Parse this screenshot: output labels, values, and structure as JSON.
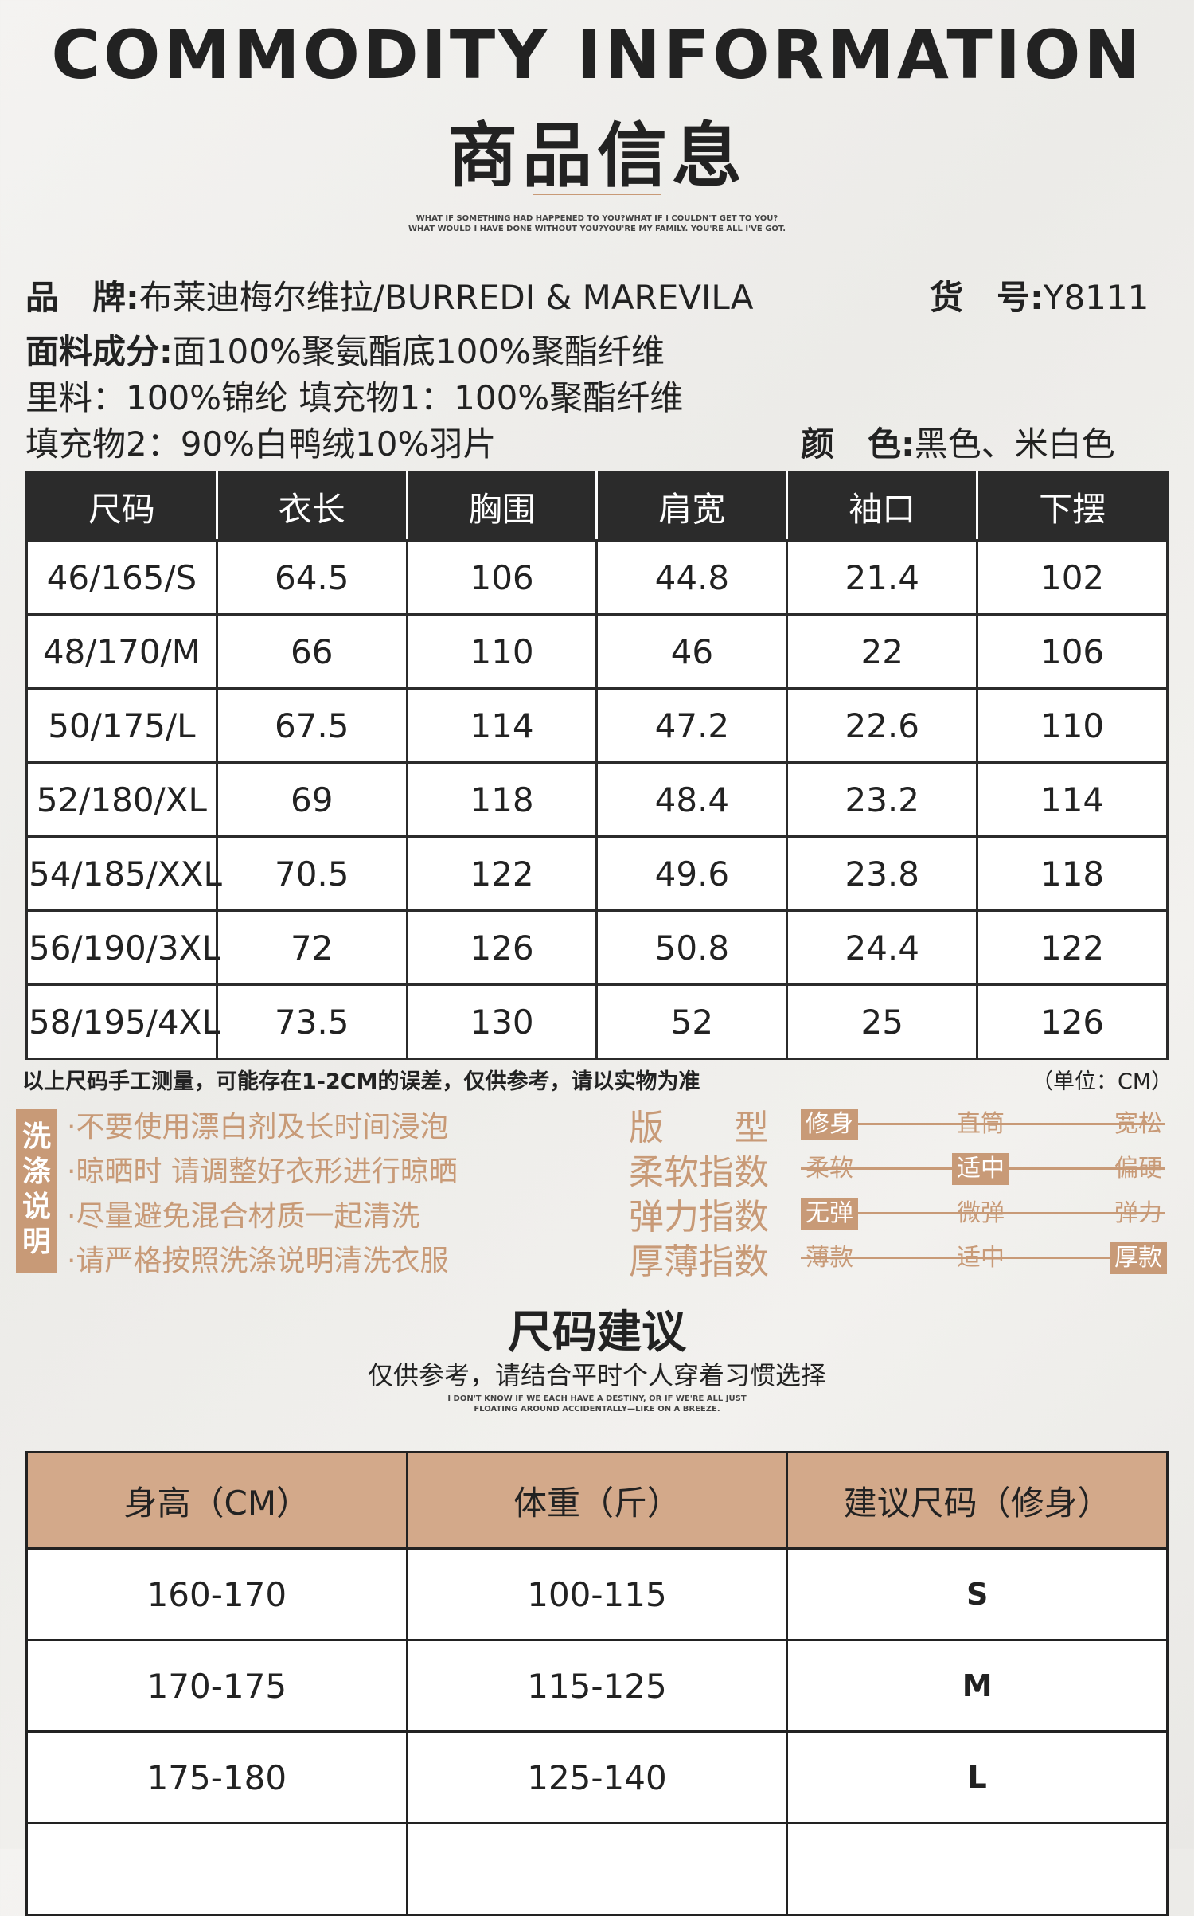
{
  "header": {
    "title_en": "COMMODITY INFORMATION",
    "title_cn": "商品信息",
    "tagline1": "WHAT IF SOMETHING HAD HAPPENED TO YOU?WHAT IF I COULDN'T GET TO YOU?",
    "tagline2": "WHAT WOULD I HAVE DONE WITHOUT YOU?YOU'RE MY FAMILY. YOU'RE ALL I'VE GOT."
  },
  "info": {
    "brand_label": "品　牌:",
    "brand_value": "布莱迪梅尔维拉/BURREDI & MAREVILA",
    "item_no_label": "货　号:",
    "item_no_value": "Y8111",
    "fabric_label": "面料成分:",
    "fabric_value": "面100%聚氨酯底100%聚酯纤维",
    "lining": "里料：100%锦纶 填充物1：100%聚酯纤维",
    "filling2": "填充物2：90%白鸭绒10%羽片",
    "color_label": "颜　色:",
    "color_value": "黑色、米白色"
  },
  "size_table": {
    "headers": [
      "尺码",
      "衣长",
      "胸围",
      "肩宽",
      "袖口",
      "下摆"
    ],
    "rows": [
      [
        "46/165/S",
        "64.5",
        "106",
        "44.8",
        "21.4",
        "102"
      ],
      [
        "48/170/M",
        "66",
        "110",
        "46",
        "22",
        "106"
      ],
      [
        "50/175/L",
        "67.5",
        "114",
        "47.2",
        "22.6",
        "110"
      ],
      [
        "52/180/XL",
        "69",
        "118",
        "48.4",
        "23.2",
        "114"
      ],
      [
        "54/185/XXL",
        "70.5",
        "122",
        "49.6",
        "23.8",
        "118"
      ],
      [
        "56/190/3XL",
        "72",
        "126",
        "50.8",
        "24.4",
        "122"
      ],
      [
        "58/195/4XL",
        "73.5",
        "130",
        "52",
        "25",
        "126"
      ]
    ],
    "note": "以上尺码手工测量，可能存在1-2CM的误差，仅供参考，请以实物为准",
    "unit": "（单位：CM）"
  },
  "wash": {
    "label": "洗涤说明",
    "items": [
      "·不要使用漂白剂及长时间浸泡",
      "·晾晒时 请调整好衣形进行晾晒",
      "·尽量避免混合材质一起清洗",
      "·请严格按照洗涤说明清洗衣服"
    ]
  },
  "indices": [
    {
      "label": "版　　型",
      "options": [
        "修身",
        "直筒",
        "宽松"
      ],
      "selected": 0
    },
    {
      "label": "柔软指数",
      "options": [
        "柔软",
        "适中",
        "偏硬"
      ],
      "selected": 1
    },
    {
      "label": "弹力指数",
      "options": [
        "无弹",
        "微弹",
        "弹力"
      ],
      "selected": 0
    },
    {
      "label": "厚薄指数",
      "options": [
        "薄款",
        "适中",
        "厚款"
      ],
      "selected": 2
    }
  ],
  "suggestion": {
    "title": "尺码建议",
    "subtitle": "仅供参考，请结合平时个人穿着习惯选择",
    "tagline1": "I DON'T KNOW IF WE EACH HAVE A DESTINY, OR IF WE'RE ALL JUST",
    "tagline2": "FLOATING AROUND ACCIDENTALLY—LIKE ON A BREEZE.",
    "headers": [
      "身高（CM）",
      "体重（斤）",
      "建议尺码（修身）"
    ],
    "rows": [
      [
        "160-170",
        "100-115",
        "S"
      ],
      [
        "170-175",
        "115-125",
        "M"
      ],
      [
        "175-180",
        "125-140",
        "L"
      ],
      [
        "",
        "",
        ""
      ]
    ]
  }
}
